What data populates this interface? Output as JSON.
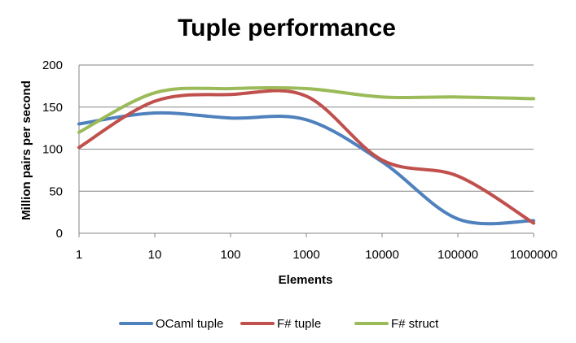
{
  "chart_data": {
    "type": "line",
    "title": "Tuple performance",
    "xlabel": "Elements",
    "ylabel": "Million pairs per second",
    "x_scale": "log",
    "x": [
      1,
      10,
      100,
      1000,
      10000,
      100000,
      1000000
    ],
    "x_tick_labels": [
      "1",
      "10",
      "100",
      "1000",
      "10000",
      "100000",
      "1000000"
    ],
    "y_ticks": [
      0,
      50,
      100,
      150,
      200
    ],
    "ylim": [
      0,
      200
    ],
    "grid": "horizontal",
    "legend": "bottom",
    "series": [
      {
        "name": "OCaml tuple",
        "color": "#4F81BD",
        "values": [
          130,
          143,
          137,
          135,
          85,
          17,
          15
        ]
      },
      {
        "name": "F# tuple",
        "color": "#C0504D",
        "values": [
          102,
          157,
          165,
          163,
          87,
          68,
          12
        ]
      },
      {
        "name": "F# struct",
        "color": "#9BBB59",
        "values": [
          120,
          167,
          172,
          172,
          162,
          162,
          160
        ]
      }
    ]
  }
}
